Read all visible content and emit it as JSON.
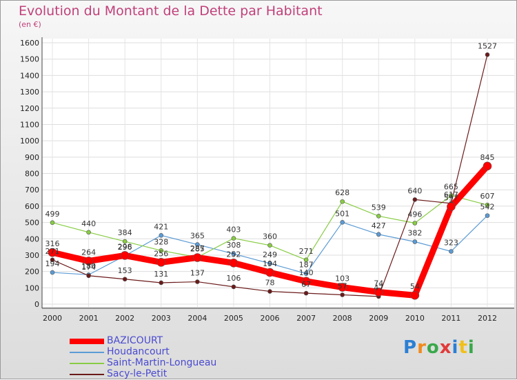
{
  "header": {
    "title": "Evolution du Montant de la Dette par Habitant",
    "unit": "(en €)"
  },
  "logo": {
    "text": "Proxiti",
    "letters": [
      "P",
      "r",
      "o",
      "x",
      "i",
      "t",
      "i"
    ],
    "colors": [
      "#2b7fd4",
      "#f08a1c",
      "#3aa84a",
      "#e23a3a",
      "#2b7fd4",
      "#f0c01c",
      "#3aa84a"
    ]
  },
  "chart_data": {
    "type": "line",
    "x": [
      "2000",
      "2001",
      "2002",
      "2003",
      "2004",
      "2005",
      "2006",
      "2007",
      "2008",
      "2009",
      "2010",
      "2011",
      "2012"
    ],
    "ylim": [
      0,
      1600
    ],
    "yticks": [
      0,
      100,
      200,
      300,
      400,
      500,
      600,
      700,
      800,
      900,
      1000,
      1100,
      1200,
      1300,
      1400,
      1500,
      1600
    ],
    "grid": true,
    "legend_position": "bottom-left",
    "series": [
      {
        "name": "BAZICOURT",
        "color": "#ff0000",
        "values": [
          316,
          264,
          298,
          256,
          285,
          252,
          194,
          140,
          103,
          74,
          54,
          597,
          845
        ]
      },
      {
        "name": "Houdancourt",
        "color": "#5b9bd5",
        "values": [
          194,
          180,
          296,
          421,
          365,
          308,
          249,
          187,
          501,
          427,
          382,
          323,
          542
        ]
      },
      {
        "name": "Saint-Martin-Longueau",
        "color": "#88cc44",
        "values": [
          499,
          440,
          384,
          328,
          287,
          403,
          360,
          271,
          628,
          539,
          496,
          665,
          607
        ]
      },
      {
        "name": "Sacy-le-Petit",
        "color": "#6b1a1a",
        "values": [
          271,
          174,
          153,
          131,
          137,
          106,
          78,
          67,
          57,
          47,
          640,
          617,
          1527
        ]
      }
    ]
  }
}
